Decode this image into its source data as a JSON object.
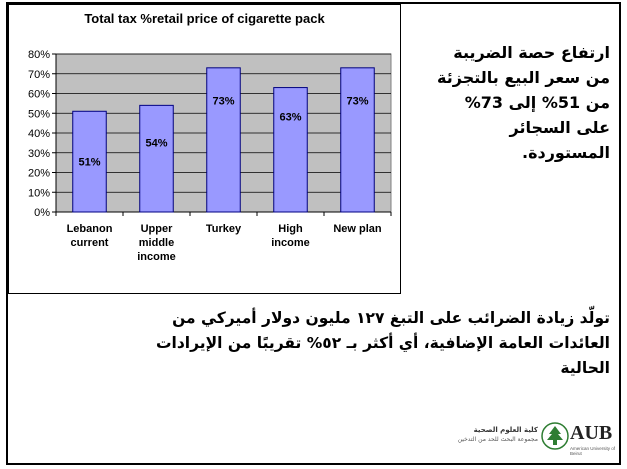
{
  "chart_data": {
    "type": "bar",
    "title": "Total tax %retail price of cigarette pack",
    "categories": [
      [
        "Lebanon",
        "current"
      ],
      [
        "Upper",
        "middle",
        "income"
      ],
      [
        "Turkey"
      ],
      [
        "High",
        "income"
      ],
      [
        "New plan"
      ]
    ],
    "values": [
      51,
      54,
      73,
      63,
      73
    ],
    "data_labels": [
      "51%",
      "54%",
      "73%",
      "63%",
      "73%"
    ],
    "ylim": [
      0,
      80
    ],
    "yticks": [
      "0%",
      "10%",
      "20%",
      "30%",
      "40%",
      "50%",
      "60%",
      "70%",
      "80%"
    ],
    "grid": true,
    "legend": "none",
    "plot_bg_color": "#c0c0c0",
    "bar_color": "#9999ff"
  },
  "side_text": [
    "ارتفاع حصة الضريبة",
    "من سعر البيع بالتجزئة",
    "من 51% إلى 73%",
    "على السجائر",
    "المستوردة."
  ],
  "bottom_text": [
    "تولّد زيادة الضرائب على التبغ ١٢٧ مليون دولار أميركي من",
    "العائدات العامة الإضافية، أي أكثر بـ ٥٢% تقريبًا من الإيرادات",
    "الحالية"
  ],
  "logo": {
    "ar_line1": "كلية العلوم الصحية",
    "ar_line2": "مجموعة البحث للحد من التدخين",
    "name": "AUB",
    "subtitle": "American University of Beirut",
    "icon": "cedar-tree-icon"
  }
}
